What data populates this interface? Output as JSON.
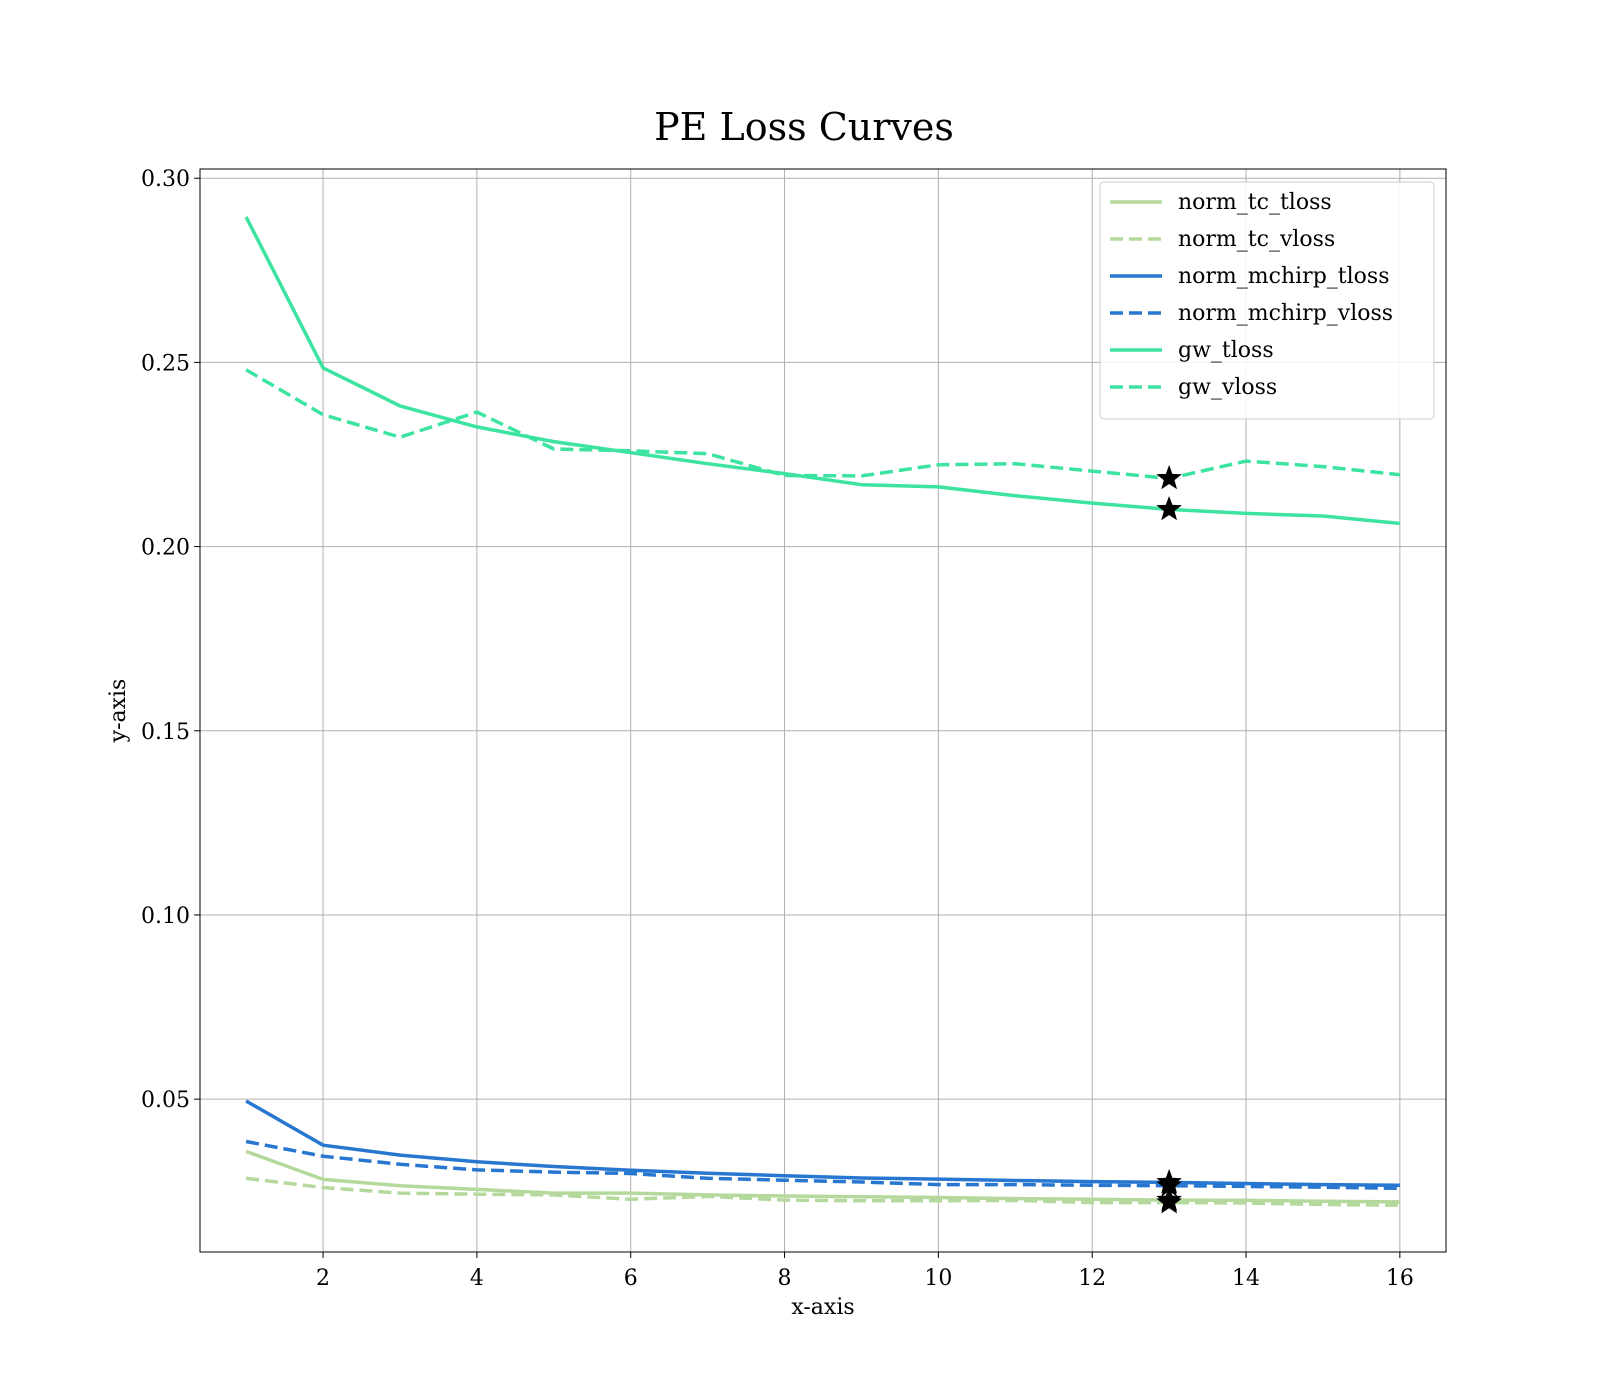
{
  "chart_data": {
    "type": "line",
    "title": "PE Loss Curves",
    "xlabel": "x-axis",
    "ylabel": "y-axis",
    "xlim": [
      0.4,
      16.6
    ],
    "ylim": [
      0.0085,
      0.3025
    ],
    "xticks": [
      2,
      4,
      6,
      8,
      10,
      12,
      14,
      16
    ],
    "yticks": [
      0.05,
      0.1,
      0.15,
      0.2,
      0.25,
      0.3
    ],
    "ytick_labels": [
      "0.05",
      "0.10",
      "0.15",
      "0.20",
      "0.25",
      "0.30"
    ],
    "grid": true,
    "legend_position": "top-right",
    "x": [
      1,
      2,
      3,
      4,
      5,
      6,
      7,
      8,
      9,
      10,
      11,
      12,
      13,
      14,
      15,
      16
    ],
    "series": [
      {
        "name": "norm_tc_tloss",
        "color": "#b5d99c",
        "dash": "solid",
        "values": [
          0.0358,
          0.0282,
          0.0265,
          0.0255,
          0.0245,
          0.0245,
          0.024,
          0.0237,
          0.0235,
          0.0233,
          0.023,
          0.0228,
          0.0226,
          0.0225,
          0.0223,
          0.0221
        ]
      },
      {
        "name": "norm_tc_vloss",
        "color": "#b5d99c",
        "dash": "dashed",
        "values": [
          0.0285,
          0.026,
          0.0245,
          0.0242,
          0.024,
          0.0228,
          0.0236,
          0.0226,
          0.0224,
          0.0224,
          0.0225,
          0.0219,
          0.0219,
          0.0218,
          0.0214,
          0.0212
        ]
      },
      {
        "name": "norm_mchirp_tloss",
        "color": "#2777d1",
        "dash": "solid",
        "values": [
          0.0495,
          0.0375,
          0.0348,
          0.033,
          0.0317,
          0.0307,
          0.0299,
          0.0292,
          0.0286,
          0.0283,
          0.0279,
          0.0276,
          0.0274,
          0.0271,
          0.0268,
          0.0266
        ]
      },
      {
        "name": "norm_mchirp_vloss",
        "color": "#2777d1",
        "dash": "dashed",
        "values": [
          0.0385,
          0.0345,
          0.0323,
          0.0308,
          0.0302,
          0.0298,
          0.0285,
          0.028,
          0.0275,
          0.0268,
          0.0268,
          0.0266,
          0.0265,
          0.0263,
          0.0261,
          0.0258
        ]
      },
      {
        "name": "gw_tloss",
        "color": "#3de3a0",
        "dash": "solid",
        "values": [
          0.2895,
          0.2485,
          0.2382,
          0.2325,
          0.2285,
          0.2255,
          0.2225,
          0.2198,
          0.2168,
          0.2162,
          0.2138,
          0.2118,
          0.2101,
          0.209,
          0.2083,
          0.2063
        ]
      },
      {
        "name": "gw_vloss",
        "color": "#3de3a0",
        "dash": "dashed",
        "values": [
          0.248,
          0.2358,
          0.2297,
          0.2365,
          0.2265,
          0.226,
          0.2252,
          0.2193,
          0.2192,
          0.2222,
          0.2225,
          0.2205,
          0.2185,
          0.2232,
          0.2217,
          0.2195
        ]
      }
    ],
    "markers": [
      {
        "shape": "star",
        "color": "#000000",
        "x": 13,
        "y": 0.2185
      },
      {
        "shape": "star",
        "color": "#000000",
        "x": 13,
        "y": 0.2101
      },
      {
        "shape": "star",
        "color": "#000000",
        "x": 13,
        "y": 0.0274
      },
      {
        "shape": "star",
        "color": "#000000",
        "x": 13,
        "y": 0.0265
      },
      {
        "shape": "star",
        "color": "#000000",
        "x": 13,
        "y": 0.0226
      },
      {
        "shape": "star",
        "color": "#000000",
        "x": 13,
        "y": 0.0219
      }
    ]
  }
}
